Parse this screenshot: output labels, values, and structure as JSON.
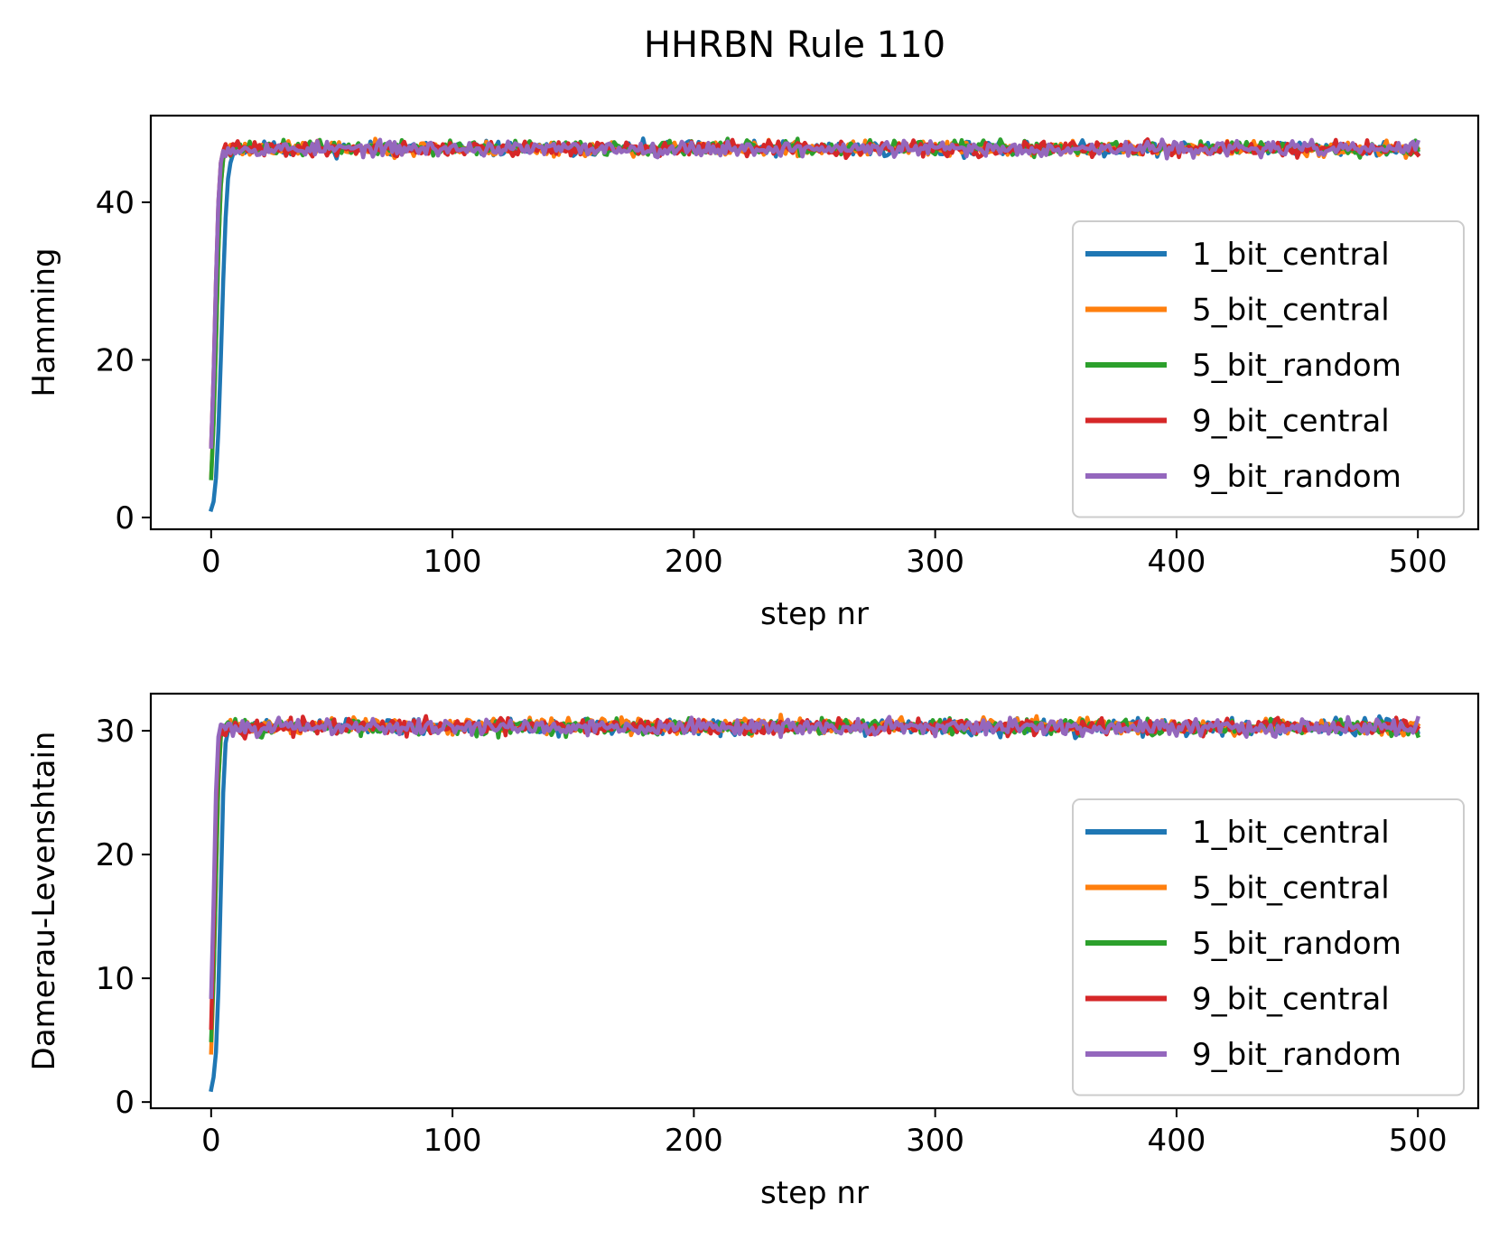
{
  "figure": {
    "title": "HHRBN Rule 110"
  },
  "chart_data": [
    {
      "type": "line",
      "title": "",
      "xlabel": "step nr",
      "ylabel": "Hamming",
      "xlim": [
        -25,
        525
      ],
      "ylim": [
        -1.5,
        51
      ],
      "xticks": [
        0,
        100,
        200,
        300,
        400,
        500
      ],
      "yticks": [
        0,
        20,
        40
      ],
      "grid": false,
      "legend_position": "center right",
      "plateau_note": "values fluctuate between ~46 and ~48 after step ~10",
      "series": [
        {
          "name": "1_bit_central",
          "color": "#1f77b4",
          "start": [
            1,
            2,
            5,
            11,
            20,
            30,
            38,
            43,
            45,
            46,
            46.5,
            47
          ],
          "plateau": 46.8,
          "spread": 0.65,
          "seed": 11
        },
        {
          "name": "5_bit_central",
          "color": "#ff7f0e",
          "start": [
            5,
            12,
            22,
            34,
            42,
            45.5,
            46.5
          ],
          "plateau": 46.8,
          "spread": 0.65,
          "seed": 23
        },
        {
          "name": "5_bit_random",
          "color": "#2ca02c",
          "start": [
            5,
            12,
            22,
            34,
            42,
            45.5,
            46.5
          ],
          "plateau": 46.9,
          "spread": 0.65,
          "seed": 37
        },
        {
          "name": "9_bit_central",
          "color": "#d62728",
          "start": [
            9,
            18,
            30,
            40,
            45,
            46.5
          ],
          "plateau": 46.8,
          "spread": 0.65,
          "seed": 41
        },
        {
          "name": "9_bit_random",
          "color": "#9467bd",
          "start": [
            9,
            18,
            30,
            40,
            45,
            46.5
          ],
          "plateau": 46.8,
          "spread": 0.65,
          "seed": 53
        }
      ]
    },
    {
      "type": "line",
      "title": "",
      "xlabel": "step nr",
      "ylabel": "Damerau-Levenshtain",
      "xlim": [
        -25,
        525
      ],
      "ylim": [
        -0.5,
        33
      ],
      "xticks": [
        0,
        100,
        200,
        300,
        400,
        500
      ],
      "yticks": [
        0,
        10,
        20,
        30
      ],
      "grid": false,
      "legend_position": "center right",
      "plateau_note": "values fluctuate between ~29.5 and ~31.5 after step ~8",
      "series": [
        {
          "name": "1_bit_central",
          "color": "#1f77b4",
          "start": [
            1,
            2,
            4,
            9,
            17,
            25,
            29,
            30,
            30.3
          ],
          "plateau": 30.3,
          "spread": 0.45,
          "seed": 61
        },
        {
          "name": "5_bit_central",
          "color": "#ff7f0e",
          "start": [
            4,
            10,
            18,
            26,
            29.5,
            30.2
          ],
          "plateau": 30.4,
          "spread": 0.45,
          "seed": 71
        },
        {
          "name": "5_bit_random",
          "color": "#2ca02c",
          "start": [
            5,
            10,
            18,
            26,
            29.5,
            30.2
          ],
          "plateau": 30.3,
          "spread": 0.45,
          "seed": 83
        },
        {
          "name": "9_bit_central",
          "color": "#d62728",
          "start": [
            6,
            14,
            24,
            29,
            30.2
          ],
          "plateau": 30.3,
          "spread": 0.45,
          "seed": 97
        },
        {
          "name": "9_bit_random",
          "color": "#9467bd",
          "start": [
            8.5,
            16,
            25,
            29.5,
            30.5
          ],
          "plateau": 30.3,
          "spread": 0.45,
          "seed": 101
        }
      ]
    }
  ]
}
